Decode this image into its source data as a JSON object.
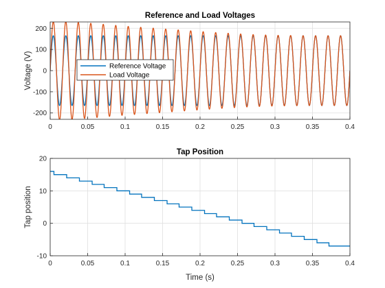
{
  "chart_data": [
    {
      "type": "line",
      "title": "Reference and Load Voltages",
      "xlabel": "",
      "ylabel": "Voltage (V)",
      "xlim": [
        0,
        0.4
      ],
      "ylim": [
        -230,
        230
      ],
      "xticks": [
        "0",
        "0.05",
        "0.1",
        "0.15",
        "0.2",
        "0.25",
        "0.3",
        "0.35",
        "0.4"
      ],
      "yticks": [
        "-200",
        "-100",
        "0",
        "100",
        "200"
      ],
      "grid": true,
      "legend": "center-left",
      "frequency_hz": 60,
      "series": [
        {
          "name": "Reference Voltage",
          "color": "#0072BD",
          "amplitude": [
            [
              0,
              165
            ],
            [
              0.4,
              165
            ]
          ]
        },
        {
          "name": "Load Voltage",
          "color": "#D95319",
          "amplitude": [
            [
              0,
              232
            ],
            [
              0.02,
              232
            ],
            [
              0.04,
              227
            ],
            [
              0.06,
              222
            ],
            [
              0.08,
              216
            ],
            [
              0.1,
              210
            ],
            [
              0.12,
              205
            ],
            [
              0.14,
              200
            ],
            [
              0.16,
              195
            ],
            [
              0.18,
              190
            ],
            [
              0.2,
              185
            ],
            [
              0.22,
              180
            ],
            [
              0.24,
              176
            ],
            [
              0.26,
              172
            ],
            [
              0.28,
              169
            ],
            [
              0.3,
              167
            ],
            [
              0.32,
              166
            ],
            [
              0.34,
              165
            ],
            [
              0.36,
              165
            ],
            [
              0.4,
              165
            ]
          ]
        }
      ]
    },
    {
      "type": "line",
      "title": "Tap Position",
      "xlabel": "Time (s)",
      "ylabel": "Tap position",
      "xlim": [
        0,
        0.4
      ],
      "ylim": [
        -10,
        20
      ],
      "xticks": [
        "0",
        "0.05",
        "0.1",
        "0.15",
        "0.2",
        "0.25",
        "0.3",
        "0.35",
        "0.4"
      ],
      "yticks": [
        "-10",
        "0",
        "10",
        "20"
      ],
      "grid": true,
      "series": [
        {
          "name": "",
          "color": "#0072BD",
          "step": true,
          "x": [
            0,
            0.005,
            0.022,
            0.039,
            0.056,
            0.072,
            0.089,
            0.106,
            0.122,
            0.139,
            0.156,
            0.172,
            0.189,
            0.206,
            0.222,
            0.239,
            0.256,
            0.272,
            0.289,
            0.306,
            0.322,
            0.339,
            0.356,
            0.372,
            0.4
          ],
          "y": [
            16,
            15,
            14,
            13,
            12,
            11,
            10,
            9,
            8,
            7,
            6,
            5,
            4,
            3,
            2,
            1,
            0,
            -1,
            -2,
            -3,
            -4,
            -5,
            -6,
            -7,
            -7
          ]
        }
      ]
    }
  ]
}
